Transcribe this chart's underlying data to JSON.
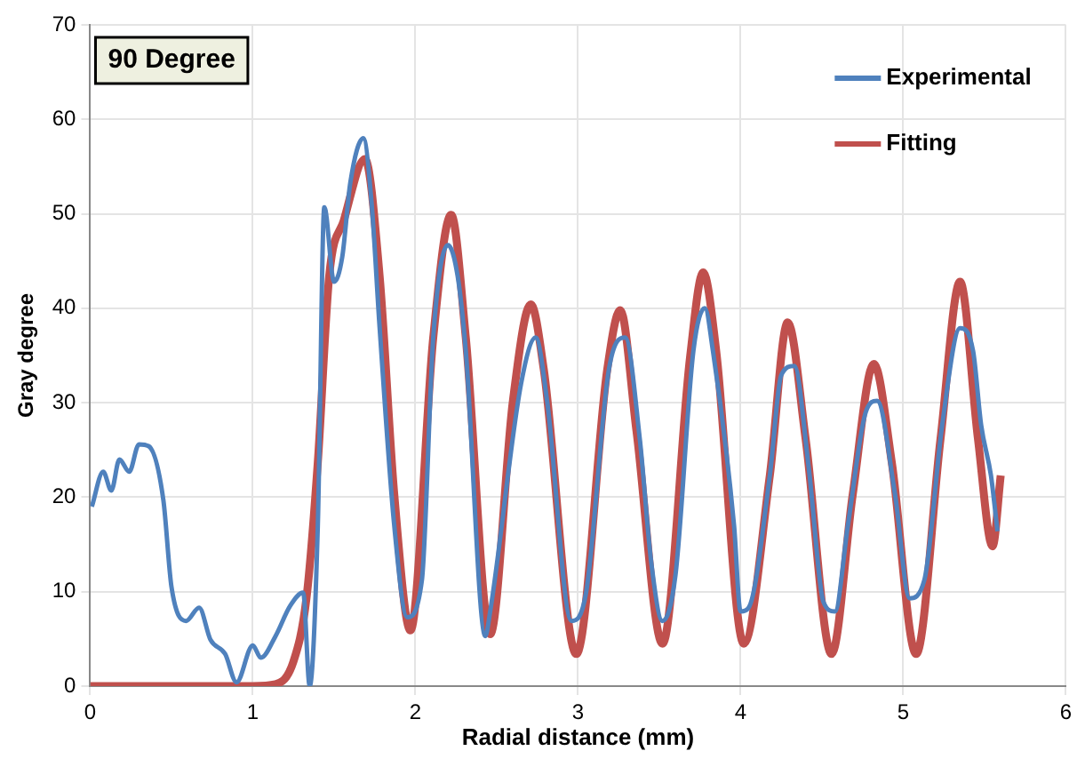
{
  "chart_data": {
    "type": "line",
    "title": "90 Degree",
    "xlabel": "Radial distance (mm)",
    "ylabel": "Gray degree",
    "xlim": [
      0,
      6
    ],
    "xticks": [
      0,
      1,
      2,
      3,
      4,
      5,
      6
    ],
    "ylim": [
      0,
      70
    ],
    "yticks": [
      0,
      10,
      20,
      30,
      40,
      50,
      60,
      70
    ],
    "grid": true,
    "legend": "top right",
    "marker": "none",
    "line_style": "solid",
    "series": [
      {
        "name": "Experimental",
        "color": "#4f81bd",
        "x": [
          0.01,
          0.08,
          0.13,
          0.18,
          0.24,
          0.3,
          0.36,
          0.45,
          0.5,
          0.59,
          0.67,
          0.74,
          0.83,
          0.9,
          1.0,
          1.05,
          1.14,
          1.23,
          1.31,
          1.35,
          1.4,
          1.44,
          1.5,
          1.55,
          1.6,
          1.68,
          1.73,
          1.78,
          1.87,
          1.95,
          2.04,
          2.11,
          2.2,
          2.26,
          2.31,
          2.43,
          2.46,
          2.65,
          2.74,
          2.81,
          2.96,
          3.05,
          3.19,
          3.29,
          3.38,
          3.45,
          3.52,
          3.6,
          3.71,
          3.78,
          3.83,
          3.96,
          4.0,
          4.05,
          4.18,
          4.25,
          4.33,
          4.42,
          4.51,
          4.58,
          4.66,
          4.77,
          4.84,
          4.95,
          5.04,
          5.13,
          5.24,
          5.35,
          5.43,
          5.48,
          5.54,
          5.58
        ],
        "values": [
          19,
          22.7,
          20.7,
          24,
          22.7,
          25.6,
          25.4,
          19.7,
          10.5,
          6.9,
          8.3,
          4.9,
          3.4,
          0.4,
          4.3,
          3,
          5.3,
          8.5,
          9.9,
          0,
          17,
          50.7,
          42.8,
          45.4,
          53.3,
          58,
          51.3,
          38,
          17,
          7.3,
          11.2,
          36.9,
          46.7,
          43.4,
          35.5,
          5.3,
          7.9,
          32,
          36.9,
          30.2,
          6.9,
          9.9,
          33.5,
          36.9,
          26.2,
          13.2,
          6.9,
          11.8,
          35.5,
          40,
          35.5,
          17,
          7.9,
          8.3,
          22.3,
          32.9,
          33.9,
          23,
          8.9,
          7.9,
          17,
          29,
          30.2,
          20.3,
          9.3,
          11.2,
          27.6,
          37.9,
          35.5,
          27.6,
          22.3,
          16.4
        ]
      },
      {
        "name": "Fitting",
        "color": "#c0504d",
        "x": [
          0,
          1.0,
          1.14,
          1.25,
          1.33,
          1.4,
          1.47,
          1.56,
          1.69,
          1.78,
          1.87,
          1.97,
          2.11,
          2.22,
          2.31,
          2.46,
          2.6,
          2.71,
          2.79,
          2.99,
          3.18,
          3.26,
          3.36,
          3.52,
          3.69,
          3.77,
          3.85,
          4.02,
          4.18,
          4.29,
          4.4,
          4.56,
          4.69,
          4.82,
          4.93,
          5.08,
          5.23,
          5.35,
          5.46,
          5.55,
          5.6
        ],
        "values": [
          0,
          0,
          0.2,
          2.6,
          9.3,
          23.7,
          43.4,
          49.3,
          55.8,
          43.4,
          20.3,
          5.9,
          36.9,
          49.9,
          36.9,
          5.5,
          30.2,
          40.4,
          33.5,
          3.4,
          33.5,
          39.8,
          27,
          4.5,
          34.9,
          43.8,
          35.5,
          4.5,
          22.3,
          38.5,
          26.2,
          3.4,
          20.3,
          34.1,
          23.7,
          3.4,
          26.2,
          42.8,
          26.2,
          14.8,
          22.3
        ]
      }
    ]
  }
}
